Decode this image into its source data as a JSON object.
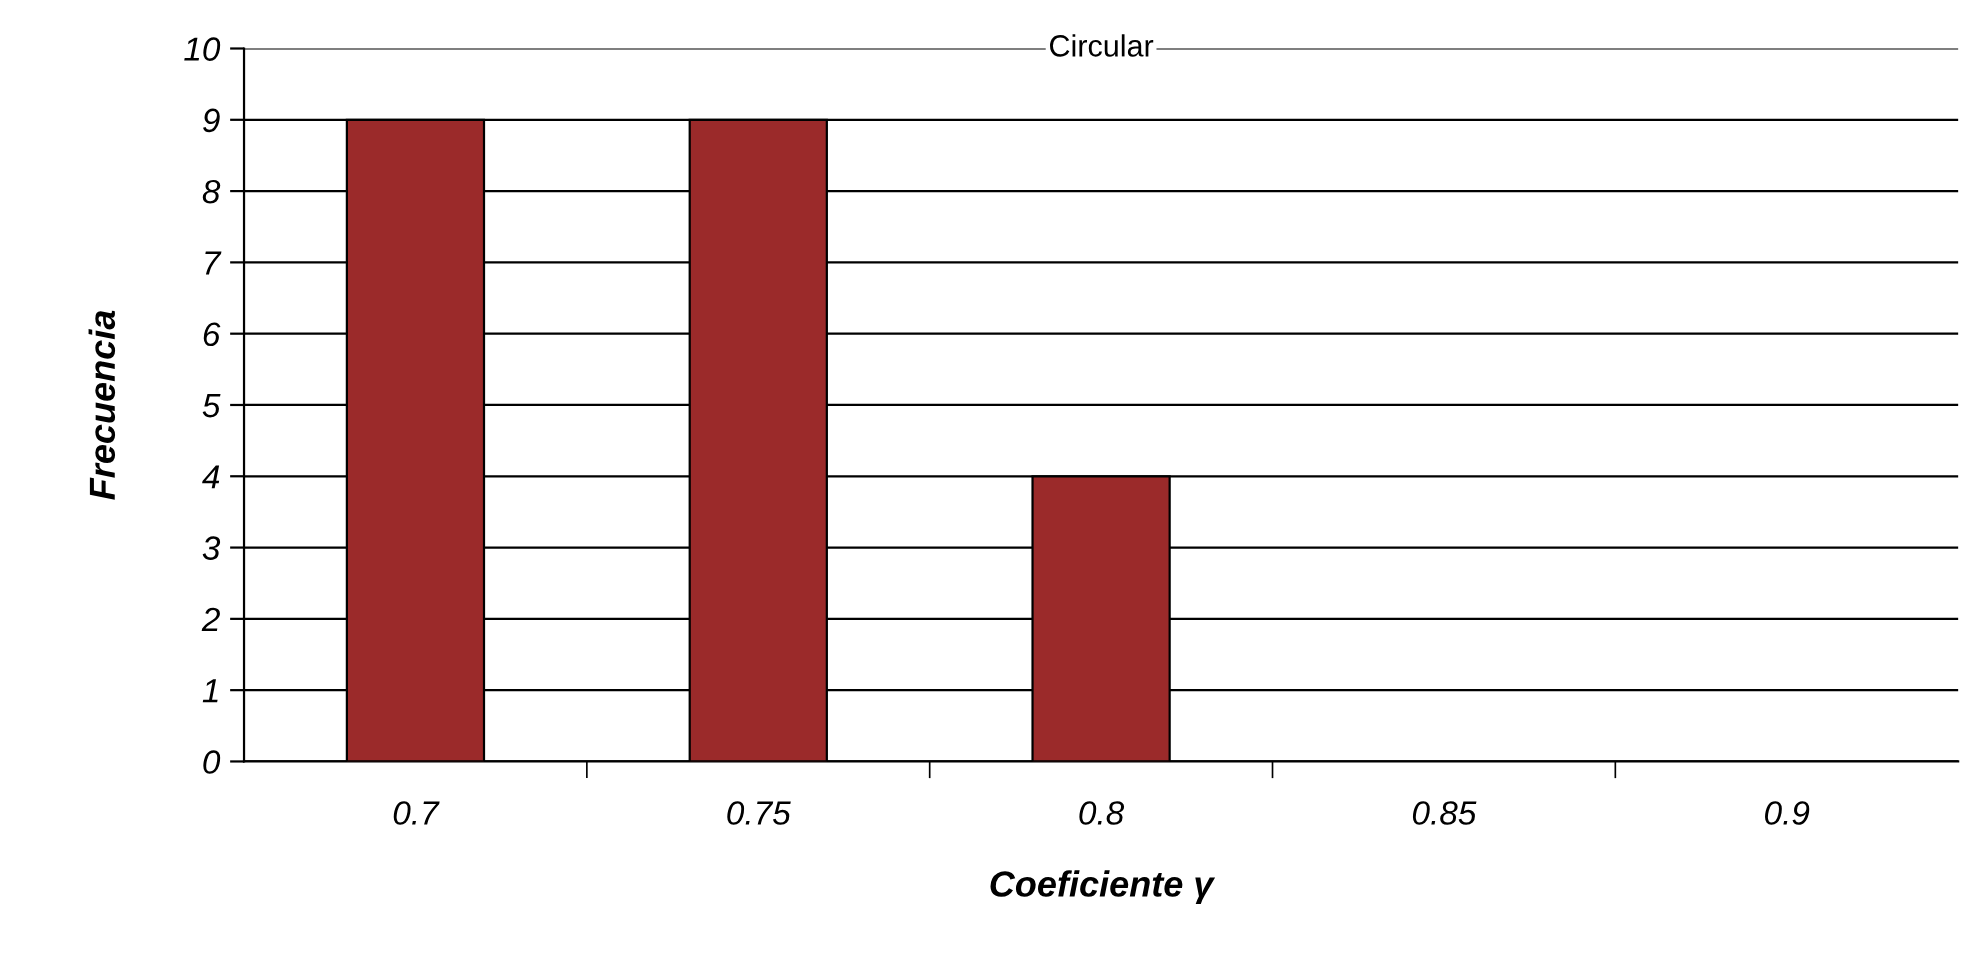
{
  "chart_data": {
    "type": "bar",
    "title": "Circular",
    "xlabel": "Coeficiente γ",
    "ylabel": "Frecuencia",
    "categories": [
      "0.7",
      "0.75",
      "0.8",
      "0.85",
      "0.9"
    ],
    "values": [
      9,
      9,
      4,
      0,
      0
    ],
    "color": "#9b2a2a",
    "ylim": [
      0,
      10
    ],
    "yticks": [
      0,
      1,
      2,
      3,
      4,
      5,
      6,
      7,
      8,
      9,
      10
    ],
    "grid": "y",
    "legend": false
  }
}
